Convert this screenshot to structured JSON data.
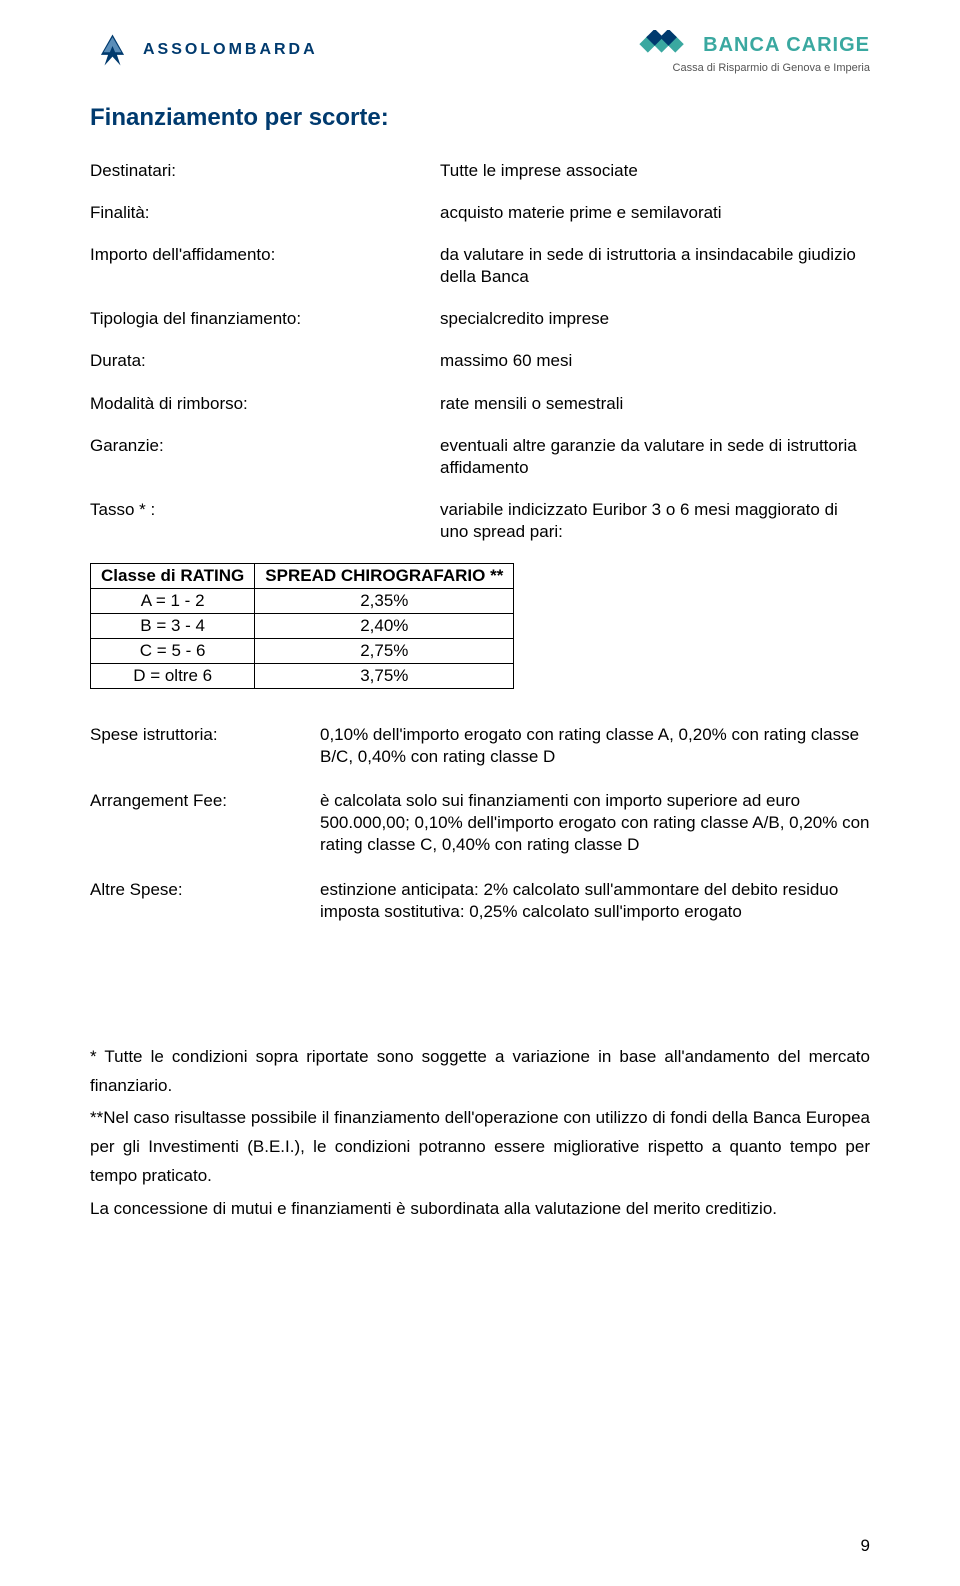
{
  "header": {
    "left_logo_text": "ASSOLOMBARDA",
    "right_bank": "BANCA CARIGE",
    "right_sub": "Cassa di Risparmio di Genova e Imperia",
    "colors": {
      "brand_blue": "#003a6e",
      "brand_teal": "#3aa8a0"
    }
  },
  "title": "Finanziamento per scorte:",
  "definitions": [
    {
      "label": "Destinatari:",
      "value": "Tutte le imprese associate"
    },
    {
      "label": "Finalità:",
      "value": "acquisto materie prime e semilavorati"
    },
    {
      "label": "Importo dell'affidamento:",
      "value": "da valutare in sede di istruttoria a insindacabile giudizio della Banca"
    },
    {
      "label": "Tipologia del finanziamento:",
      "value": "specialcredito imprese"
    },
    {
      "label": "Durata:",
      "value": "massimo 60 mesi"
    },
    {
      "label": "Modalità di rimborso:",
      "value": "rate mensili o semestrali"
    },
    {
      "label": "Garanzie:",
      "value": "eventuali altre garanzie da valutare in sede di istruttoria affidamento"
    },
    {
      "label": "Tasso * :",
      "value": "variabile indicizzato Euribor 3 o 6 mesi maggiorato di uno spread pari:"
    }
  ],
  "rating_table": {
    "columns": [
      "Classe di RATING",
      "SPREAD CHIROGRAFARIO **"
    ],
    "rows": [
      [
        "A = 1 - 2",
        "2,35%"
      ],
      [
        "B = 3 - 4",
        "2,40%"
      ],
      [
        "C = 5 - 6",
        "2,75%"
      ],
      [
        "D = oltre 6",
        "3,75%"
      ]
    ]
  },
  "fees": [
    {
      "label": "Spese istruttoria:",
      "value": "0,10% dell'importo erogato con rating classe A, 0,20% con rating classe B/C, 0,40% con rating classe D"
    },
    {
      "label": "Arrangement Fee:",
      "value": "è calcolata solo sui finanziamenti con importo superiore ad euro 500.000,00; 0,10% dell'importo erogato con rating classe A/B, 0,20% con rating classe C, 0,40% con rating classe D"
    },
    {
      "label": "Altre Spese:",
      "value": "estinzione anticipata: 2% calcolato sull'ammontare del debito residuo imposta sostitutiva: 0,25% calcolato sull'importo erogato"
    }
  ],
  "footnotes": [
    "* Tutte le condizioni sopra riportate sono soggette a variazione in base all'andamento del mercato finanziario.",
    "**Nel caso risultasse possibile il finanziamento dell'operazione con utilizzo di fondi della Banca Europea per gli Investimenti (B.E.I.), le condizioni potranno essere migliorative rispetto a quanto tempo per tempo praticato.",
    "La concessione di mutui e finanziamenti è subordinata alla valutazione del merito creditizio."
  ],
  "page_number": "9"
}
